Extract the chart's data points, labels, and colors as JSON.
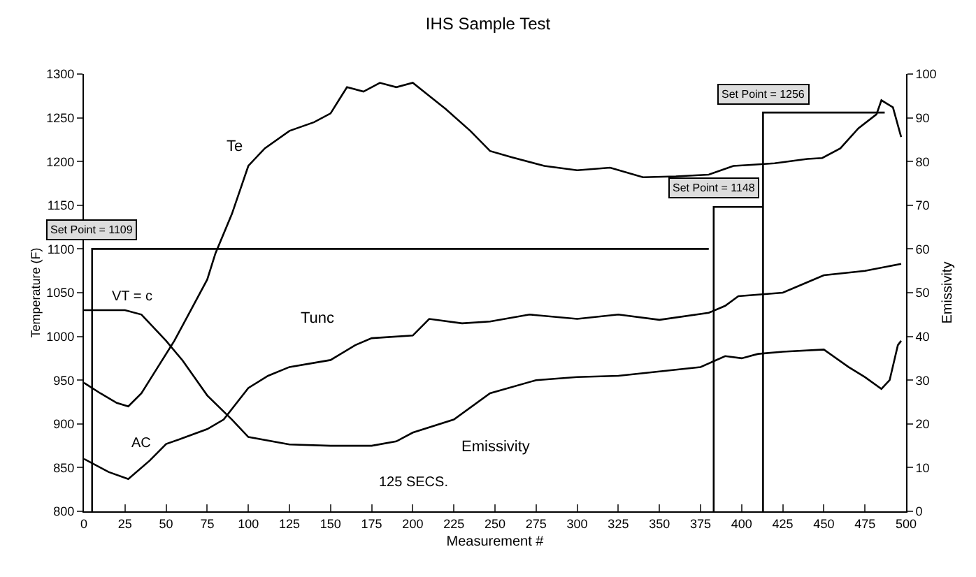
{
  "chart_data": {
    "type": "line",
    "title": "IHS Sample Test",
    "xlabel": "Measurement #",
    "ylabel": "Temperature (F)",
    "y2label": "Emissivity",
    "xlim": [
      0,
      500
    ],
    "xticks": [
      0,
      25,
      50,
      75,
      100,
      125,
      150,
      175,
      200,
      225,
      250,
      275,
      300,
      325,
      350,
      375,
      400,
      425,
      450,
      475,
      500
    ],
    "ylim": [
      800,
      1300
    ],
    "yticks": [
      800,
      850,
      900,
      950,
      1000,
      1050,
      1100,
      1150,
      1200,
      1250,
      1300
    ],
    "y2lim": [
      0,
      100
    ],
    "y2ticks": [
      0,
      10,
      20,
      30,
      40,
      50,
      60,
      70,
      80,
      90,
      100
    ],
    "grid": false,
    "legend": false,
    "marker": "none",
    "line_style": "solid",
    "series": [
      {
        "name": "Te",
        "color": "#000000",
        "x": [
          0,
          10,
          20,
          27,
          35,
          45,
          55,
          65,
          75,
          80,
          90,
          100,
          110,
          125,
          140,
          150,
          155,
          160,
          170,
          180,
          190,
          200,
          210,
          220,
          235,
          247,
          260,
          280,
          300,
          320,
          340,
          360,
          380,
          395,
          404,
          420,
          440,
          449,
          460,
          471,
          482,
          485,
          492,
          497
        ],
        "values": [
          947,
          935,
          924,
          920,
          935,
          965,
          995,
          1030,
          1065,
          1095,
          1140,
          1195,
          1215,
          1235,
          1245,
          1255,
          1270,
          1285,
          1280,
          1290,
          1285,
          1290,
          1275,
          1260,
          1235,
          1212,
          1205,
          1195,
          1190,
          1193,
          1182,
          1183,
          1185,
          1195,
          1196,
          1198,
          1203,
          1204,
          1215,
          1238,
          1254,
          1270,
          1262,
          1228
        ]
      },
      {
        "name": "Tunc",
        "color": "#000000",
        "x": [
          0,
          15,
          27,
          40,
          50,
          62,
          75,
          85,
          100,
          112,
          125,
          150,
          165,
          175,
          200,
          210,
          230,
          247,
          271,
          300,
          325,
          350,
          380,
          390,
          398,
          425,
          440,
          450,
          475,
          497
        ],
        "values": [
          860,
          845,
          837,
          858,
          877,
          885,
          894,
          905,
          941,
          955,
          965,
          973,
          990,
          998,
          1001,
          1020,
          1015,
          1017,
          1025,
          1020,
          1025,
          1019,
          1027,
          1035,
          1046,
          1050,
          1062,
          1070,
          1075,
          1083
        ]
      },
      {
        "name": "Emissivity",
        "axis": "y2",
        "color": "#000000",
        "x": [
          0,
          25,
          35,
          50,
          60,
          75,
          90,
          100,
          125,
          150,
          175,
          190,
          200,
          225,
          247,
          275,
          300,
          325,
          350,
          375,
          390,
          400,
          410,
          425,
          450,
          465,
          475,
          485,
          490,
          495,
          497
        ],
        "values": [
          46,
          46,
          45,
          39,
          34.5,
          26.5,
          21,
          17,
          15.3,
          15,
          15,
          16,
          18,
          21,
          27,
          30,
          30.7,
          31,
          32,
          33,
          35.5,
          35,
          36,
          36.5,
          37,
          33,
          30.7,
          28,
          30,
          38,
          39
        ]
      },
      {
        "color": "#000000",
        "x": [
          5,
          5,
          380
        ],
        "values": [
          800,
          1100,
          1100
        ]
      },
      {
        "color": "#000000",
        "x": [
          383,
          383,
          413
        ],
        "values": [
          800,
          1148,
          1148
        ]
      },
      {
        "color": "#000000",
        "x": [
          413,
          413,
          487
        ],
        "values": [
          800,
          1256,
          1256
        ]
      }
    ],
    "annotations": [
      {
        "text": "Set Point = 1109",
        "x": 5,
        "y": 1100
      },
      {
        "text": "Set Point = 1148",
        "x": 383,
        "y": 1148
      },
      {
        "text": "Set Point = 1256",
        "x": 413,
        "y": 1256
      },
      "VT = c",
      "AC",
      "125 SECS."
    ]
  }
}
